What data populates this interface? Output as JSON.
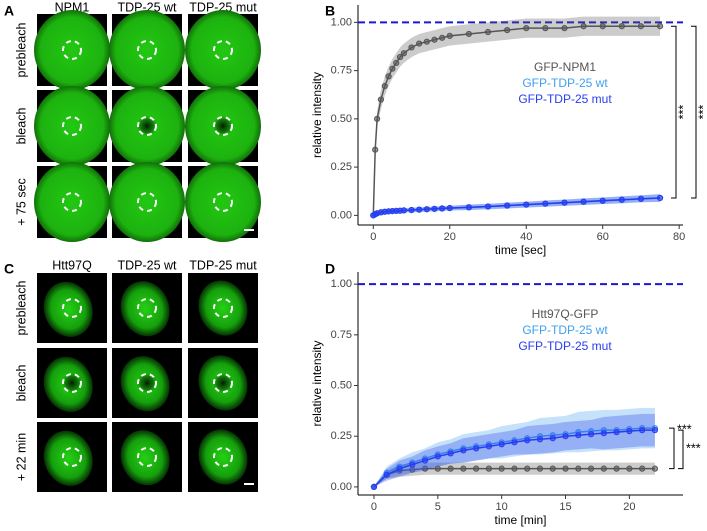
{
  "panels": {
    "letters": [
      "A",
      "B",
      "C",
      "D"
    ],
    "a_columns": [
      "NPM1",
      "TDP-25 wt",
      "TDP-25 mut"
    ],
    "a_rows": [
      "prebleach",
      "bleach",
      "+ 75 sec"
    ],
    "c_columns": [
      "Htt97Q",
      "TDP-25 wt",
      "TDP-25 mut"
    ],
    "c_rows": [
      "prebleach",
      "bleach",
      "+ 22 min"
    ],
    "b_significance": [
      "***",
      "***"
    ],
    "d_significance": [
      "***",
      "***"
    ]
  },
  "chart_data": [
    {
      "type": "line",
      "x_label": "time [sec]",
      "y_label": "relative intensity",
      "x": [
        0,
        0.5,
        1,
        2,
        3,
        4,
        5,
        6,
        7,
        8,
        10,
        12,
        14,
        16,
        18,
        20,
        25,
        30,
        35,
        40,
        45,
        50,
        55,
        60,
        65,
        70,
        75
      ],
      "series": [
        {
          "name": "GFP-NPM1",
          "color": "#555555",
          "values": [
            0,
            0.34,
            0.5,
            0.6,
            0.67,
            0.72,
            0.76,
            0.79,
            0.82,
            0.84,
            0.87,
            0.89,
            0.9,
            0.91,
            0.92,
            0.93,
            0.94,
            0.95,
            0.96,
            0.97,
            0.97,
            0.97,
            0.98,
            0.98,
            0.98,
            0.98,
            0.98
          ],
          "error": [
            0,
            0.03,
            0.04,
            0.05,
            0.05,
            0.05,
            0.05,
            0.05,
            0.05,
            0.05,
            0.05,
            0.05,
            0.05,
            0.05,
            0.05,
            0.05,
            0.05,
            0.05,
            0.05,
            0.05,
            0.05,
            0.05,
            0.05,
            0.05,
            0.05,
            0.05,
            0.05
          ]
        },
        {
          "name": "GFP-TDP-25 wt",
          "color": "#3ea0f0",
          "values": [
            0,
            0.005,
            0.01,
            0.015,
            0.018,
            0.02,
            0.022,
            0.023,
            0.024,
            0.025,
            0.027,
            0.029,
            0.031,
            0.033,
            0.035,
            0.037,
            0.041,
            0.045,
            0.05,
            0.055,
            0.06,
            0.065,
            0.07,
            0.075,
            0.08,
            0.085,
            0.09
          ],
          "error": [
            0,
            0.01,
            0.01,
            0.01,
            0.01,
            0.01,
            0.01,
            0.01,
            0.01,
            0.01,
            0.012,
            0.012,
            0.012,
            0.012,
            0.012,
            0.012,
            0.014,
            0.014,
            0.015,
            0.015,
            0.016,
            0.016,
            0.017,
            0.017,
            0.018,
            0.018,
            0.02
          ]
        },
        {
          "name": "GFP-TDP-25 mut",
          "color": "#2a3cf0",
          "values": [
            0,
            0.006,
            0.011,
            0.016,
            0.019,
            0.021,
            0.022,
            0.023,
            0.024,
            0.026,
            0.028,
            0.03,
            0.032,
            0.034,
            0.036,
            0.038,
            0.042,
            0.046,
            0.051,
            0.056,
            0.061,
            0.066,
            0.071,
            0.076,
            0.081,
            0.086,
            0.09
          ],
          "error": [
            0,
            0.01,
            0.01,
            0.01,
            0.01,
            0.01,
            0.01,
            0.01,
            0.01,
            0.01,
            0.012,
            0.012,
            0.012,
            0.012,
            0.012,
            0.012,
            0.014,
            0.014,
            0.015,
            0.015,
            0.016,
            0.016,
            0.017,
            0.017,
            0.018,
            0.018,
            0.02
          ]
        }
      ],
      "reference_line": {
        "value": 1,
        "color": "#1a1ad0"
      },
      "xlim": [
        -4,
        81
      ],
      "ylim": [
        -0.05,
        1.09
      ],
      "xticks": [
        0,
        20,
        40,
        60,
        80
      ],
      "yticks": [
        {
          "value": 0,
          "label": "0.00"
        },
        {
          "value": 0.25,
          "label": "0.25"
        },
        {
          "value": 0.5,
          "label": "0.50"
        },
        {
          "value": 0.75,
          "label": "0.75"
        },
        {
          "value": 1,
          "label": "1.00"
        }
      ]
    },
    {
      "type": "line",
      "x_label": "time [min]",
      "y_label": "relative intensity",
      "x": [
        0,
        1,
        2,
        3,
        4,
        5,
        6,
        7,
        8,
        9,
        10,
        11,
        12,
        13,
        14,
        15,
        16,
        17,
        18,
        19,
        20,
        21,
        22
      ],
      "series": [
        {
          "name": "Htt97Q-GFP",
          "color": "#555555",
          "values": [
            0,
            0.06,
            0.08,
            0.085,
            0.09,
            0.09,
            0.09,
            0.09,
            0.09,
            0.09,
            0.09,
            0.09,
            0.09,
            0.09,
            0.09,
            0.09,
            0.09,
            0.09,
            0.09,
            0.09,
            0.09,
            0.09,
            0.09
          ],
          "error": [
            0,
            0.02,
            0.03,
            0.03,
            0.03,
            0.03,
            0.03,
            0.03,
            0.03,
            0.03,
            0.03,
            0.03,
            0.03,
            0.03,
            0.03,
            0.03,
            0.03,
            0.03,
            0.03,
            0.03,
            0.03,
            0.03,
            0.03
          ]
        },
        {
          "name": "GFP-TDP-25 wt",
          "color": "#3ea0f0",
          "values": [
            0,
            0.07,
            0.1,
            0.12,
            0.14,
            0.16,
            0.175,
            0.19,
            0.2,
            0.21,
            0.22,
            0.23,
            0.24,
            0.25,
            0.255,
            0.26,
            0.27,
            0.275,
            0.28,
            0.28,
            0.285,
            0.29,
            0.29
          ],
          "error": [
            0,
            0.03,
            0.04,
            0.05,
            0.05,
            0.06,
            0.06,
            0.07,
            0.07,
            0.07,
            0.08,
            0.08,
            0.08,
            0.09,
            0.09,
            0.09,
            0.1,
            0.1,
            0.1,
            0.1,
            0.1,
            0.1,
            0.1
          ]
        },
        {
          "name": "GFP-TDP-25 mut",
          "color": "#2a3cf0",
          "values": [
            0,
            0.06,
            0.09,
            0.11,
            0.13,
            0.15,
            0.165,
            0.18,
            0.19,
            0.2,
            0.21,
            0.22,
            0.23,
            0.235,
            0.24,
            0.25,
            0.255,
            0.26,
            0.265,
            0.27,
            0.275,
            0.28,
            0.28
          ],
          "error": [
            0,
            0.03,
            0.04,
            0.04,
            0.05,
            0.05,
            0.05,
            0.06,
            0.06,
            0.06,
            0.06,
            0.06,
            0.07,
            0.07,
            0.07,
            0.07,
            0.07,
            0.07,
            0.08,
            0.08,
            0.08,
            0.08,
            0.08
          ]
        }
      ],
      "reference_line": {
        "value": 1,
        "color": "#1a1ad0"
      },
      "xlim": [
        -1.25,
        24.2
      ],
      "ylim": [
        -0.04,
        1.06
      ],
      "xticks": [
        0,
        5,
        10,
        15,
        20
      ],
      "yticks": [
        {
          "value": 0,
          "label": "0.00"
        },
        {
          "value": 0.25,
          "label": "0.25"
        },
        {
          "value": 0.5,
          "label": "0.50"
        },
        {
          "value": 0.75,
          "label": "0.75"
        },
        {
          "value": 1,
          "label": "1.00"
        }
      ]
    }
  ]
}
